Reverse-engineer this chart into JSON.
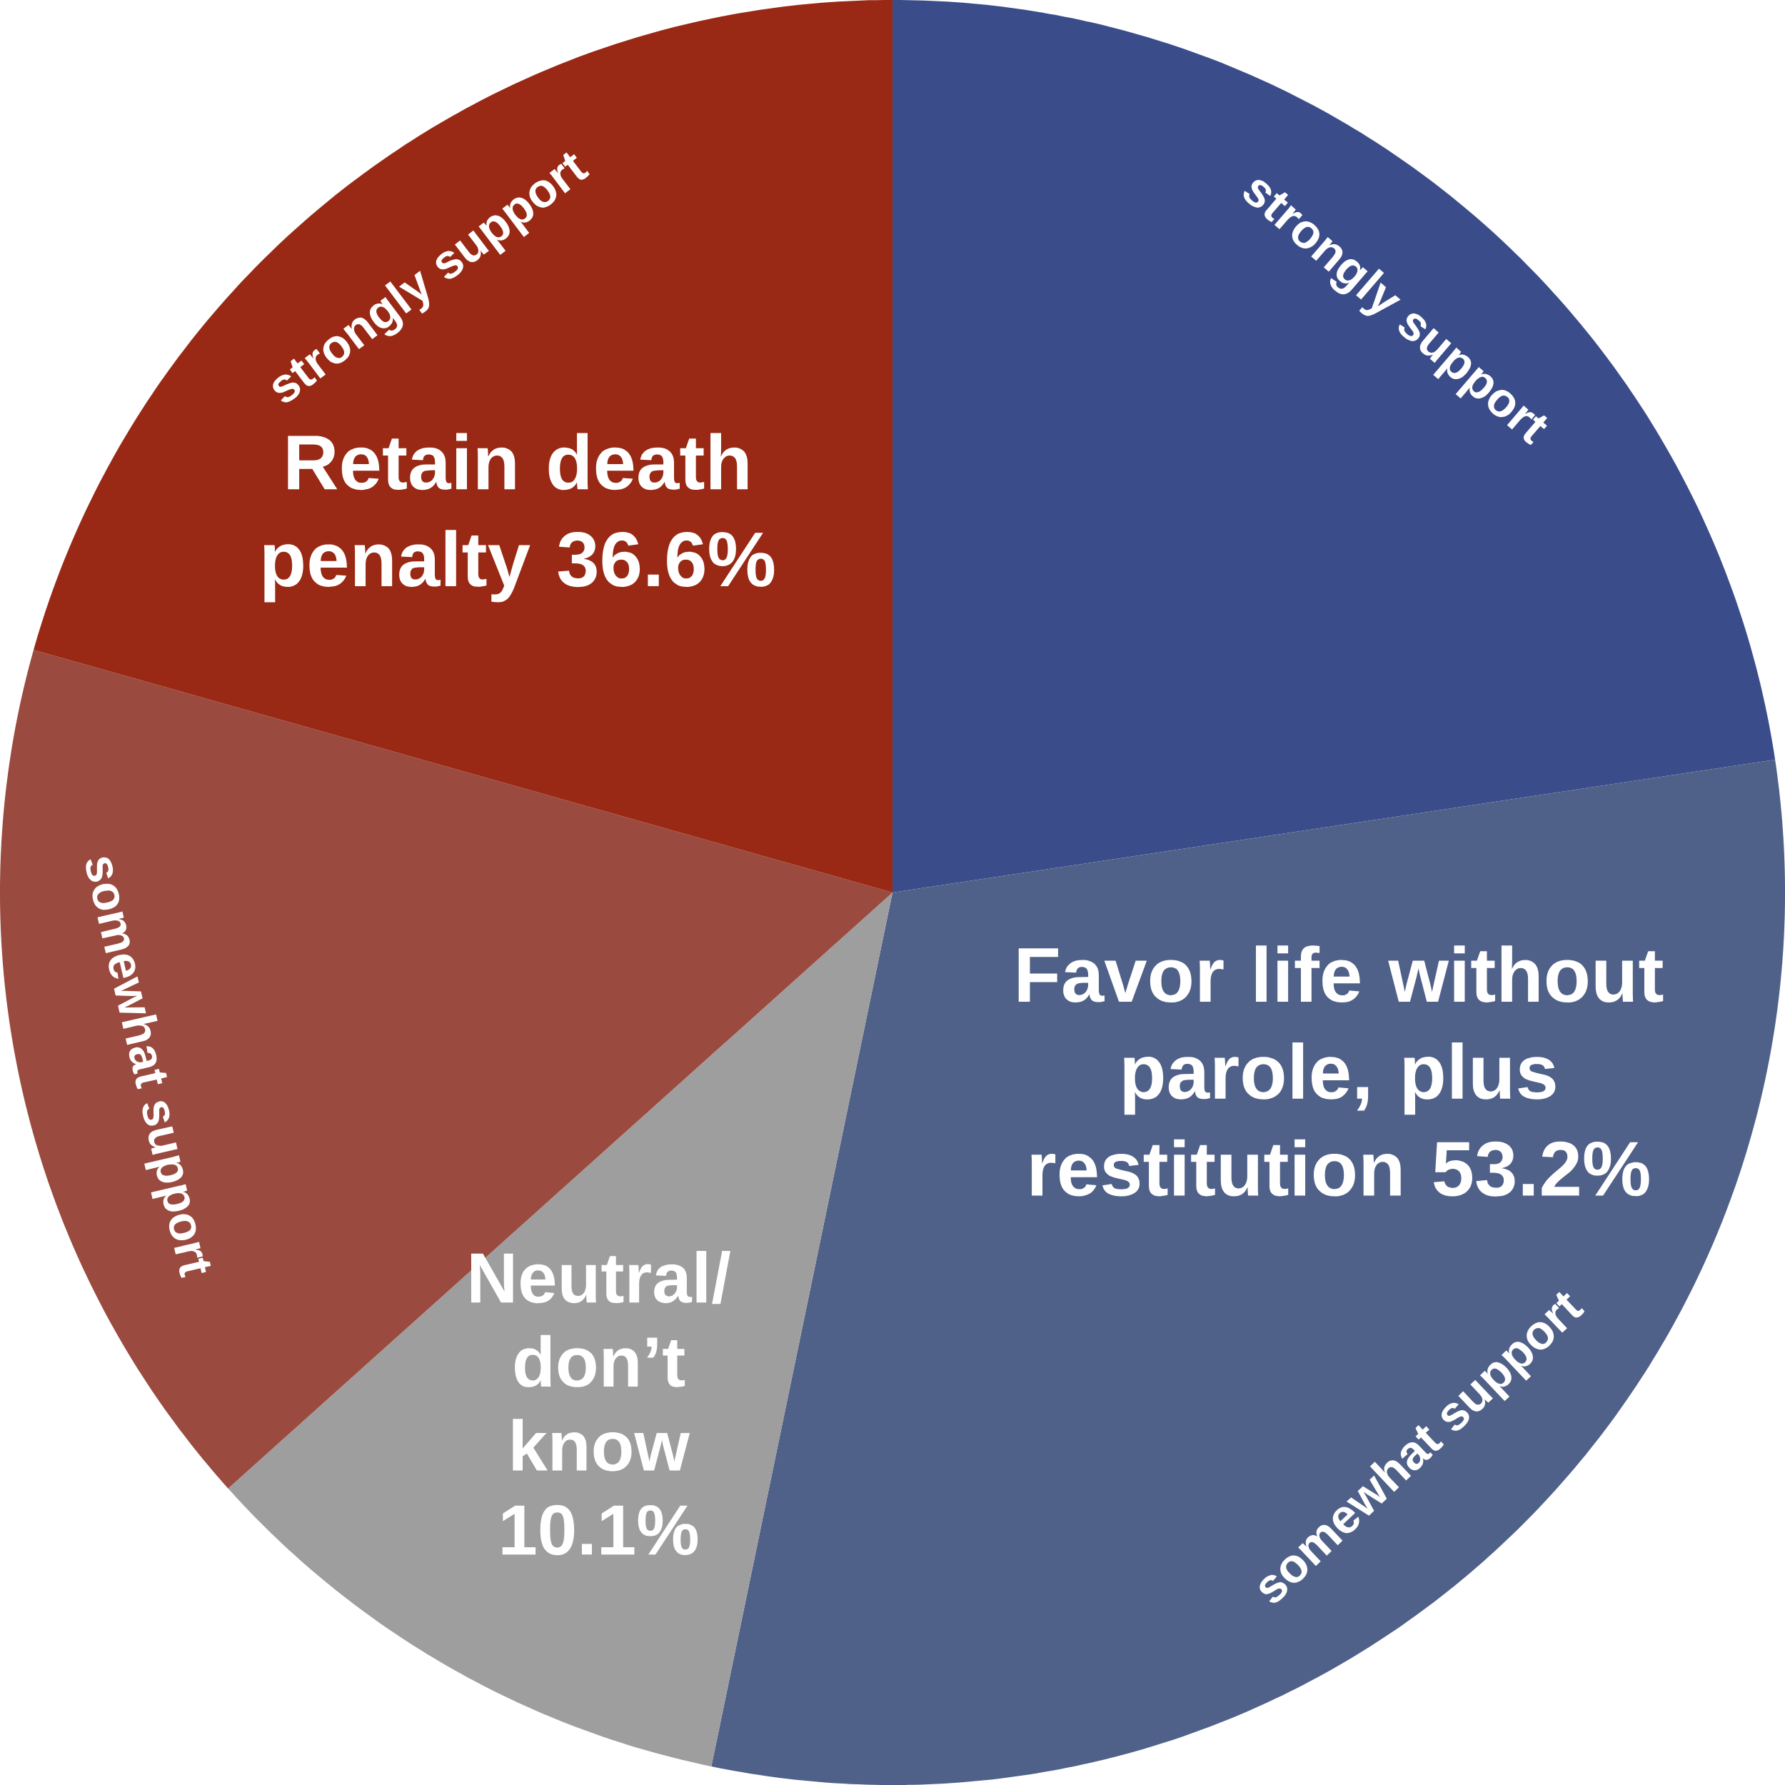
{
  "chart_data": {
    "type": "pie",
    "categories": [
      "strongly support",
      "somewhat support",
      "Neutral/ don’t know",
      "somewhat support",
      "strongly support"
    ],
    "values": [
      22.6,
      30.6,
      10.1,
      16.0,
      20.6
    ],
    "colors": [
      "#3a4d8a",
      "#506189",
      "#9e9e9e",
      "#9a4a3e",
      "#992914"
    ],
    "value_labels": [
      null,
      null,
      "10.1%",
      null,
      null
    ],
    "annotations": [
      "Favor life without parole, plus restitution 53.2%",
      "Retain death penalty 36.6%"
    ]
  }
}
